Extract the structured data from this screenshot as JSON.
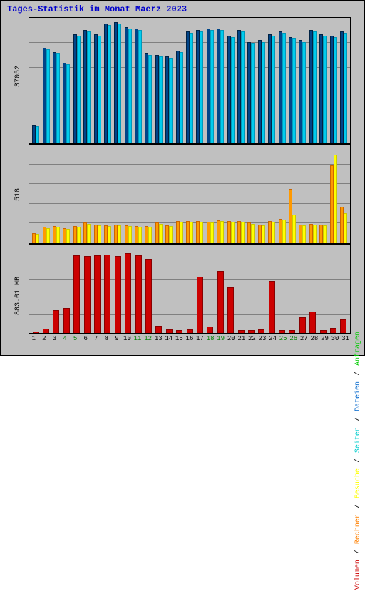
{
  "title": "Tages-Statistik im Monat Maerz 2023",
  "background_color": "#c0c0c0",
  "border_color": "#000000",
  "grid_color": "#808080",
  "days": [
    1,
    2,
    3,
    4,
    5,
    6,
    7,
    8,
    9,
    10,
    11,
    12,
    13,
    14,
    15,
    16,
    17,
    18,
    19,
    20,
    21,
    22,
    23,
    24,
    25,
    26,
    27,
    28,
    29,
    30,
    31
  ],
  "xaxis_colors": [
    "#000",
    "#000",
    "#000",
    "#008000",
    "#008000",
    "#000",
    "#000",
    "#000",
    "#000",
    "#000",
    "#008000",
    "#008000",
    "#000",
    "#000",
    "#000",
    "#000",
    "#000",
    "#008000",
    "#008000",
    "#000",
    "#000",
    "#000",
    "#000",
    "#000",
    "#008000",
    "#008000",
    "#000",
    "#000",
    "#000",
    "#000",
    "#000"
  ],
  "legend": {
    "items": [
      {
        "label": "Volumen",
        "color": "#cc0000"
      },
      {
        "label": "Rechner",
        "color": "#ff8000"
      },
      {
        "label": "Besuche",
        "color": "#ffff00"
      },
      {
        "label": "Seiten",
        "color": "#00cccc"
      },
      {
        "label": "Dateien",
        "color": "#0066cc"
      },
      {
        "label": "Anfragen",
        "color": "#00cc00"
      }
    ],
    "separator": " / "
  },
  "panels": {
    "top": {
      "ylabel": "37052",
      "ymax": 42000,
      "gridlines": [
        0.2,
        0.4,
        0.6,
        0.8
      ],
      "series": [
        {
          "color": "#004488",
          "border": "#002244",
          "width": 5,
          "values": [
            6000,
            32000,
            30500,
            27000,
            36500,
            38000,
            36500,
            40000,
            40500,
            39000,
            38500,
            30000,
            29500,
            29000,
            31000,
            37500,
            38000,
            38500,
            38500,
            36000,
            38000,
            34000,
            34500,
            36500,
            37500,
            35500,
            34500,
            38000,
            36500,
            36000,
            37500
          ]
        },
        {
          "color": "#00ccee",
          "border": "#0099bb",
          "width": 5,
          "values": [
            5800,
            31500,
            30000,
            26500,
            36000,
            37500,
            36000,
            39500,
            40000,
            38500,
            38000,
            29500,
            29000,
            28500,
            30500,
            37000,
            37500,
            38000,
            38000,
            35500,
            37500,
            33500,
            34000,
            36000,
            37000,
            35000,
            34000,
            37500,
            36000,
            35500,
            37000
          ]
        }
      ]
    },
    "mid": {
      "ylabel": "518",
      "ymax": 580,
      "gridlines": [
        0.2,
        0.4,
        0.6,
        0.8
      ],
      "series": [
        {
          "color": "#ff9900",
          "border": "#cc6600",
          "width": 5,
          "values": [
            60,
            95,
            100,
            90,
            100,
            120,
            110,
            105,
            110,
            105,
            100,
            100,
            120,
            105,
            130,
            130,
            130,
            125,
            135,
            130,
            130,
            120,
            110,
            130,
            145,
            320,
            110,
            115,
            110,
            460,
            215
          ]
        },
        {
          "color": "#ffff00",
          "border": "#cccc00",
          "width": 5,
          "values": [
            55,
            90,
            95,
            85,
            95,
            115,
            105,
            100,
            105,
            100,
            95,
            95,
            115,
            100,
            125,
            125,
            125,
            120,
            130,
            125,
            125,
            115,
            105,
            125,
            140,
            170,
            105,
            110,
            105,
            520,
            175
          ]
        }
      ]
    },
    "bot": {
      "ylabel": "883.01 MB",
      "ymax": 1000,
      "gridlines": [
        0.2,
        0.4,
        0.6,
        0.8
      ],
      "series": [
        {
          "color": "#cc0000",
          "border": "#880000",
          "width": 9,
          "values": [
            20,
            50,
            260,
            280,
            880,
            870,
            880,
            890,
            870,
            900,
            880,
            830,
            80,
            40,
            30,
            40,
            640,
            70,
            700,
            520,
            30,
            30,
            40,
            590,
            30,
            30,
            180,
            240,
            30,
            60,
            150
          ]
        }
      ]
    }
  }
}
